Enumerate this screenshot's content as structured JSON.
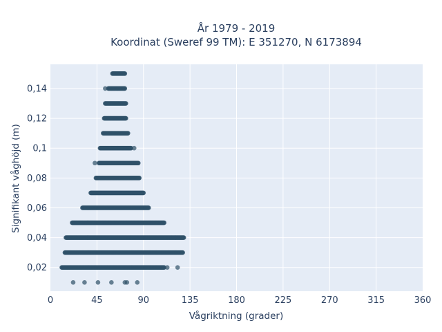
{
  "chart_data": {
    "type": "scatter",
    "title_line1": "År 1979 - 2019",
    "title_line2": "Koordinat (Sweref 99 TM): E 351270, N 6173894",
    "xlabel": "Vågriktning (grader)",
    "ylabel": "Signifikant våghöjd (m)",
    "xlim": [
      0,
      360
    ],
    "ylim": [
      0.0041,
      0.1562
    ],
    "x_ticks": [
      0,
      45,
      90,
      135,
      180,
      225,
      270,
      315,
      360
    ],
    "x_tick_labels": [
      "0",
      "45",
      "90",
      "135",
      "180",
      "225",
      "270",
      "315",
      "360"
    ],
    "y_ticks": [
      0.02,
      0.04,
      0.06,
      0.08,
      0.1,
      0.12,
      0.14
    ],
    "y_tick_labels": [
      "0,02",
      "0,04",
      "0,06",
      "0,08",
      "0,1",
      "0,12",
      "0,14"
    ],
    "grid": true,
    "colors": {
      "marker": "#2f5168",
      "plot_bg": "#e5ecf6",
      "grid": "#ffffff",
      "text": "#2a3f5f"
    },
    "series": [
      {
        "bands": [
          {
            "y": 0.01,
            "points": [
              22,
              33,
              46,
              59,
              72,
              74,
              84
            ]
          },
          {
            "y": 0.02,
            "x_range": [
              11,
              110
            ],
            "outliers": [
              113,
              123
            ]
          },
          {
            "y": 0.03,
            "x_range": [
              14,
              128
            ]
          },
          {
            "y": 0.04,
            "x_range": [
              15,
              129
            ]
          },
          {
            "y": 0.05,
            "x_range": [
              21,
              110
            ]
          },
          {
            "y": 0.06,
            "x_range": [
              31,
              95
            ]
          },
          {
            "y": 0.07,
            "x_range": [
              39,
              90
            ]
          },
          {
            "y": 0.08,
            "x_range": [
              44,
              86
            ]
          },
          {
            "y": 0.09,
            "x_range": [
              47,
              85
            ],
            "outliers": [
              43
            ]
          },
          {
            "y": 0.1,
            "x_range": [
              48,
              78
            ],
            "outliers": [
              81
            ]
          },
          {
            "y": 0.11,
            "x_range": [
              51,
              75
            ]
          },
          {
            "y": 0.12,
            "x_range": [
              52,
              73
            ]
          },
          {
            "y": 0.13,
            "x_range": [
              53,
              73
            ]
          },
          {
            "y": 0.14,
            "x_range": [
              56,
              72
            ],
            "outliers": [
              53
            ]
          },
          {
            "y": 0.15,
            "x_range": [
              60,
              72
            ]
          }
        ]
      }
    ]
  }
}
